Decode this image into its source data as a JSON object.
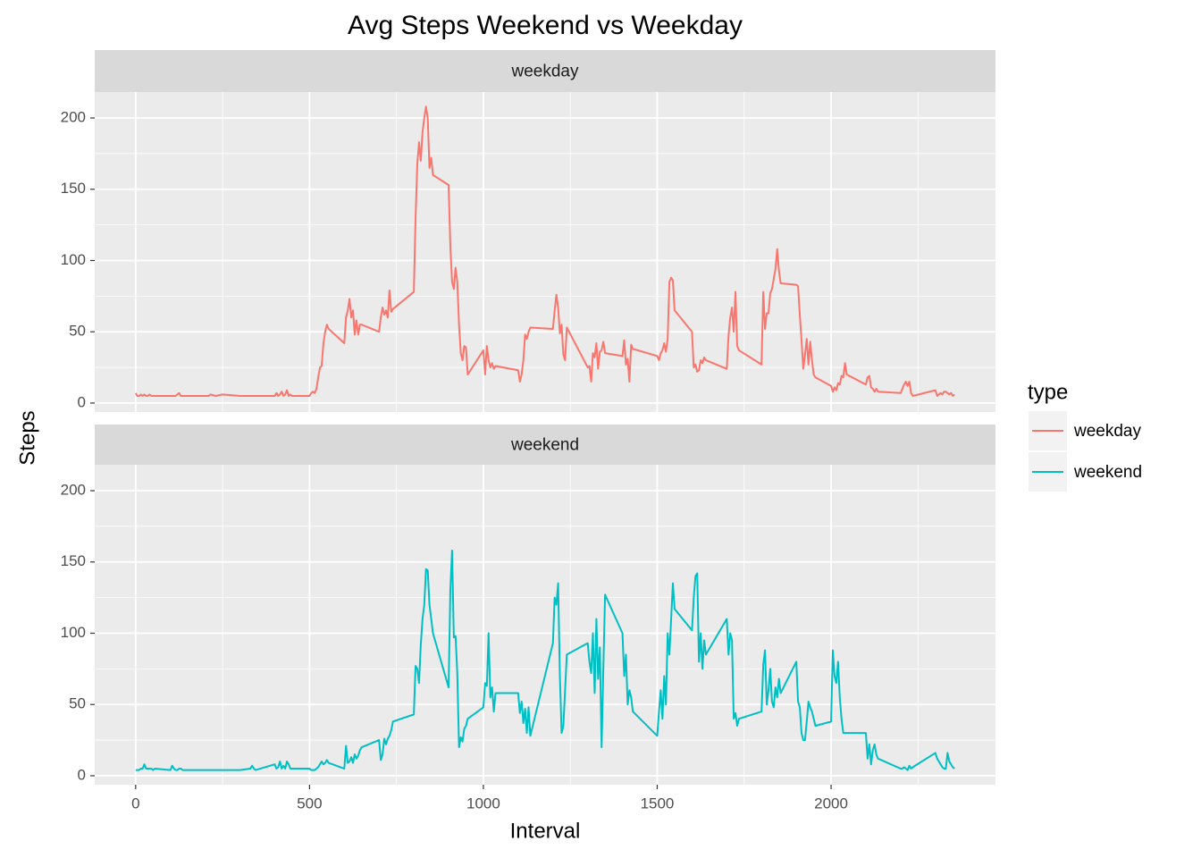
{
  "chart_data": {
    "type": "line",
    "title": "Avg Steps Weekend vs Weekday",
    "xlabel": "Interval",
    "ylabel": "Steps",
    "legend_title": "type",
    "legend_position": "right",
    "facet": "rows",
    "grid": true,
    "xlim": [
      -117.75,
      2472.75
    ],
    "xticks": [
      0,
      500,
      1000,
      1500,
      2000
    ],
    "ylim": [
      -6.3,
      218.2
    ],
    "yticks": [
      0,
      50,
      100,
      150,
      200
    ],
    "x": [
      0,
      5,
      10,
      15,
      20,
      25,
      30,
      35,
      40,
      45,
      50,
      55,
      100,
      105,
      110,
      115,
      120,
      125,
      130,
      135,
      200,
      205,
      210,
      215,
      230,
      250,
      300,
      330,
      335,
      340,
      345,
      400,
      405,
      410,
      415,
      420,
      425,
      430,
      435,
      440,
      445,
      450,
      500,
      505,
      510,
      515,
      520,
      525,
      530,
      535,
      540,
      545,
      550,
      555,
      600,
      605,
      610,
      615,
      620,
      625,
      630,
      635,
      640,
      645,
      650,
      700,
      705,
      710,
      715,
      720,
      725,
      730,
      735,
      740,
      800,
      805,
      810,
      815,
      820,
      825,
      830,
      835,
      840,
      845,
      850,
      855,
      900,
      905,
      910,
      915,
      920,
      925,
      930,
      935,
      940,
      945,
      950,
      955,
      1000,
      1005,
      1010,
      1015,
      1020,
      1025,
      1030,
      1035,
      1100,
      1105,
      1110,
      1115,
      1120,
      1125,
      1130,
      1135,
      1200,
      1205,
      1210,
      1215,
      1220,
      1225,
      1230,
      1235,
      1240,
      1300,
      1305,
      1310,
      1315,
      1320,
      1325,
      1330,
      1335,
      1340,
      1345,
      1350,
      1400,
      1405,
      1410,
      1415,
      1420,
      1425,
      1430,
      1500,
      1505,
      1510,
      1515,
      1520,
      1525,
      1530,
      1535,
      1540,
      1545,
      1550,
      1600,
      1605,
      1610,
      1615,
      1620,
      1625,
      1630,
      1635,
      1640,
      1700,
      1705,
      1710,
      1715,
      1720,
      1725,
      1730,
      1735,
      1800,
      1805,
      1810,
      1815,
      1820,
      1825,
      1830,
      1835,
      1840,
      1845,
      1850,
      1855,
      1900,
      1905,
      1910,
      1915,
      1920,
      1925,
      1930,
      1935,
      1940,
      1945,
      1950,
      1955,
      2000,
      2005,
      2010,
      2015,
      2020,
      2025,
      2030,
      2035,
      2040,
      2045,
      2100,
      2105,
      2110,
      2115,
      2120,
      2125,
      2130,
      2135,
      2200,
      2205,
      2210,
      2215,
      2220,
      2225,
      2230,
      2235,
      2300,
      2305,
      2310,
      2315,
      2320,
      2325,
      2330,
      2335,
      2340,
      2345,
      2350,
      2355
    ],
    "series": [
      {
        "name": "weekday",
        "color": "#F8766D",
        "values": [
          7,
          5,
          5,
          6,
          5,
          6,
          5,
          5,
          6,
          5,
          5,
          5,
          5,
          5,
          5,
          5,
          6,
          7,
          5,
          5,
          5,
          5,
          5,
          6,
          5,
          6,
          5,
          5,
          5,
          5,
          5,
          5,
          7,
          5,
          6,
          8,
          5,
          6,
          9,
          5,
          6,
          5,
          5,
          7,
          8,
          7,
          10,
          18,
          25,
          26,
          42,
          50,
          55,
          52,
          42,
          60,
          65,
          73,
          60,
          65,
          48,
          58,
          48,
          55,
          55,
          50,
          60,
          67,
          62,
          65,
          60,
          79,
          64,
          66,
          78,
          130,
          168,
          183,
          170,
          190,
          200,
          208,
          200,
          165,
          172,
          160,
          153,
          110,
          85,
          80,
          95,
          85,
          55,
          35,
          30,
          40,
          39,
          20,
          37,
          20,
          40,
          30,
          25,
          28,
          24,
          26,
          23,
          15,
          20,
          30,
          48,
          45,
          50,
          53,
          52,
          65,
          76,
          67,
          49,
          55,
          34,
          30,
          53,
          25,
          26,
          15,
          35,
          32,
          42,
          24,
          36,
          37,
          43,
          35,
          33,
          44,
          27,
          31,
          15,
          41,
          38,
          33,
          30,
          35,
          37,
          42,
          36,
          45,
          85,
          88,
          86,
          65,
          50,
          25,
          27,
          22,
          23,
          30,
          28,
          32,
          30,
          24,
          47,
          60,
          67,
          50,
          78,
          40,
          37,
          27,
          78,
          52,
          63,
          63,
          77,
          80,
          87,
          94,
          108,
          93,
          84,
          83,
          82,
          62,
          44,
          24,
          34,
          45,
          27,
          43,
          30,
          20,
          18,
          12,
          8,
          11,
          9,
          14,
          13,
          19,
          18,
          28,
          20,
          13,
          18,
          19,
          11,
          10,
          8,
          10,
          8,
          7,
          10,
          13,
          15,
          12,
          15,
          7,
          5,
          9,
          5,
          6,
          7,
          6,
          8,
          8,
          7,
          6,
          7,
          5,
          6
        ]
      },
      {
        "name": "weekend",
        "color": "#00BFC4",
        "values": [
          4,
          4,
          4,
          5,
          5,
          8,
          5,
          5,
          5,
          5,
          4,
          5,
          4,
          7,
          5,
          4,
          4,
          5,
          5,
          4,
          4,
          4,
          4,
          4,
          4,
          4,
          4,
          5,
          7,
          5,
          4,
          8,
          5,
          6,
          10,
          5,
          7,
          5,
          10,
          8,
          5,
          5,
          5,
          4,
          4,
          4,
          5,
          6,
          8,
          10,
          8,
          9,
          11,
          9,
          5,
          21,
          9,
          10,
          13,
          9,
          15,
          12,
          14,
          18,
          20,
          25,
          11,
          15,
          26,
          22,
          26,
          28,
          32,
          38,
          43,
          77,
          75,
          65,
          92,
          110,
          120,
          145,
          144,
          120,
          110,
          100,
          62,
          130,
          158,
          97,
          98,
          72,
          20,
          27,
          24,
          33,
          35,
          40,
          48,
          65,
          63,
          100,
          55,
          62,
          45,
          58,
          58,
          44,
          52,
          37,
          47,
          30,
          48,
          28,
          93,
          125,
          120,
          135,
          70,
          30,
          35,
          60,
          85,
          93,
          80,
          72,
          100,
          58,
          110,
          68,
          90,
          20,
          75,
          127,
          100,
          70,
          85,
          50,
          60,
          55,
          45,
          28,
          45,
          60,
          40,
          70,
          50,
          100,
          85,
          110,
          135,
          117,
          102,
          125,
          140,
          142,
          80,
          100,
          75,
          95,
          85,
          110,
          85,
          100,
          95,
          40,
          44,
          35,
          40,
          45,
          78,
          88,
          50,
          60,
          75,
          52,
          48,
          62,
          55,
          68,
          58,
          80,
          52,
          48,
          30,
          25,
          25,
          38,
          52,
          48,
          45,
          40,
          35,
          38,
          88,
          70,
          65,
          80,
          55,
          40,
          30,
          30,
          30,
          30,
          12,
          22,
          8,
          18,
          22,
          15,
          12,
          5,
          5,
          6,
          5,
          4,
          7,
          5,
          6,
          16,
          12,
          10,
          8,
          6,
          5,
          5,
          16,
          10,
          8,
          6,
          5
        ]
      }
    ]
  }
}
